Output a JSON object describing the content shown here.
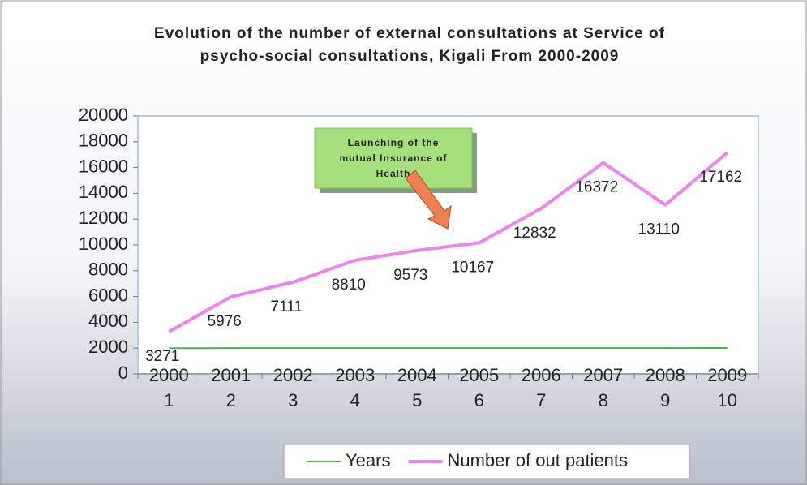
{
  "chart_data": {
    "type": "line",
    "title": [
      "Evolution of the number of external consultations at Service of",
      "psycho-social consultations, Kigali From 2000-2009"
    ],
    "annotation": "Launching of the mutual Insurance of Health",
    "categories": [
      "1",
      "2",
      "3",
      "4",
      "5",
      "6",
      "7",
      "8",
      "9",
      "10"
    ],
    "series": [
      {
        "name": "Years",
        "color": "#4caf50",
        "values": [
          2000,
          2001,
          2002,
          2003,
          2004,
          2005,
          2006,
          2007,
          2008,
          2009
        ]
      },
      {
        "name": "Number of out patients",
        "color": "#ee82ee",
        "values": [
          3271,
          5976,
          7111,
          8810,
          9573,
          10167,
          12832,
          16372,
          13110,
          17162
        ]
      }
    ],
    "ylim": [
      0,
      20000
    ],
    "yticks": [
      0,
      2000,
      4000,
      6000,
      8000,
      10000,
      12000,
      14000,
      16000,
      18000,
      20000
    ],
    "legend": "bottom"
  }
}
